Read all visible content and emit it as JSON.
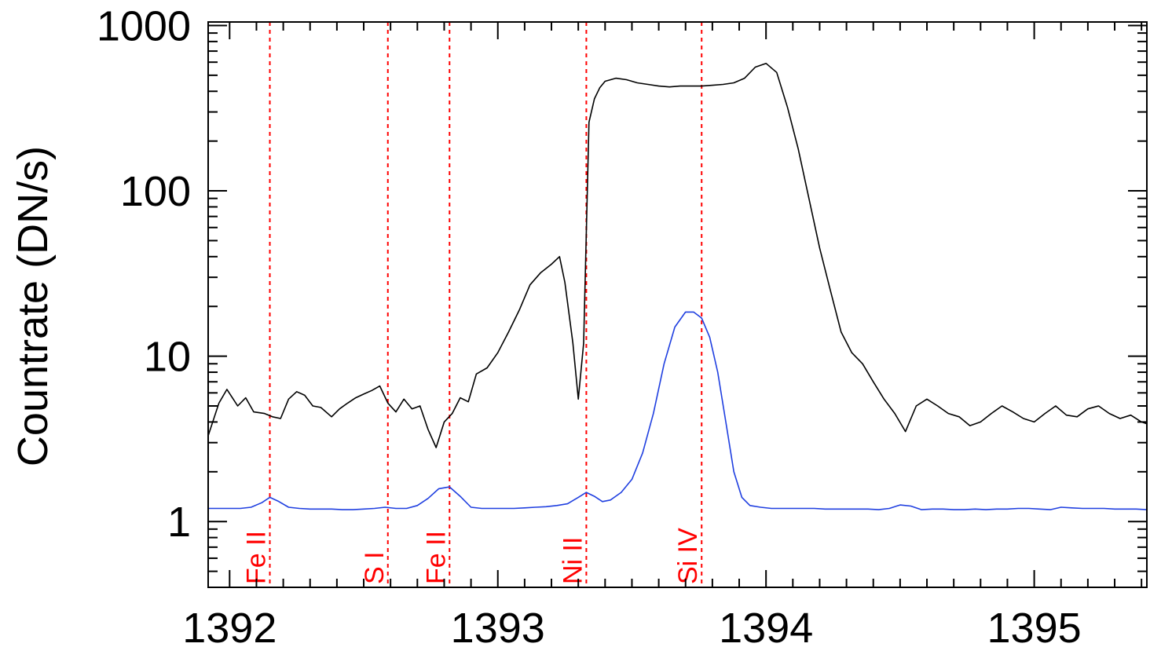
{
  "chart_data": {
    "type": "line",
    "title": "",
    "xlabel": "",
    "ylabel": "Countrate (DN/s)",
    "xlim": [
      1391.92,
      1395.42
    ],
    "ylim": [
      0.4,
      1050
    ],
    "y_scale": "log",
    "x_ticks": [
      {
        "value": 1392,
        "label": "1392"
      },
      {
        "value": 1393,
        "label": "1393"
      },
      {
        "value": 1394,
        "label": "1394"
      },
      {
        "value": 1395,
        "label": "1395"
      }
    ],
    "y_ticks": [
      {
        "value": 1,
        "label": "1"
      },
      {
        "value": 10,
        "label": "10"
      },
      {
        "value": 100,
        "label": "100"
      },
      {
        "value": 1000,
        "label": "1000"
      }
    ],
    "grid": false,
    "legend": "none",
    "colors": {
      "series_black": "#000000",
      "series_blue": "#1f3fe0",
      "marker_lines": "#ff0000"
    },
    "reference_lines": [
      {
        "x": 1392.15,
        "label": "Fe II"
      },
      {
        "x": 1392.59,
        "label": "S I"
      },
      {
        "x": 1392.82,
        "label": "Fe II"
      },
      {
        "x": 1393.33,
        "label": "Ni II"
      },
      {
        "x": 1393.76,
        "label": "Si IV"
      }
    ],
    "series": [
      {
        "color": "#000000",
        "x": [
          1391.92,
          1391.96,
          1391.99,
          1392.03,
          1392.06,
          1392.09,
          1392.13,
          1392.16,
          1392.19,
          1392.22,
          1392.25,
          1392.28,
          1392.31,
          1392.34,
          1392.38,
          1392.41,
          1392.44,
          1392.47,
          1392.5,
          1392.53,
          1392.56,
          1392.59,
          1392.62,
          1392.65,
          1392.68,
          1392.71,
          1392.74,
          1392.77,
          1392.8,
          1392.83,
          1392.86,
          1392.89,
          1392.92,
          1392.96,
          1393.0,
          1393.04,
          1393.08,
          1393.12,
          1393.16,
          1393.2,
          1393.23,
          1393.25,
          1393.28,
          1393.3,
          1393.32,
          1393.34,
          1393.36,
          1393.38,
          1393.4,
          1393.44,
          1393.48,
          1393.52,
          1393.56,
          1393.6,
          1393.64,
          1393.68,
          1393.72,
          1393.76,
          1393.8,
          1393.84,
          1393.88,
          1393.92,
          1393.96,
          1394.0,
          1394.04,
          1394.08,
          1394.12,
          1394.16,
          1394.2,
          1394.24,
          1394.28,
          1394.32,
          1394.36,
          1394.4,
          1394.44,
          1394.48,
          1394.52,
          1394.56,
          1394.6,
          1394.64,
          1394.68,
          1394.72,
          1394.76,
          1394.8,
          1394.84,
          1394.88,
          1394.92,
          1394.96,
          1395.0,
          1395.04,
          1395.08,
          1395.12,
          1395.16,
          1395.2,
          1395.24,
          1395.28,
          1395.32,
          1395.36,
          1395.4,
          1395.42
        ],
        "y": [
          3.3,
          5.2,
          6.3,
          5.0,
          5.6,
          4.6,
          4.5,
          4.3,
          4.2,
          5.5,
          6.1,
          5.8,
          5.0,
          4.9,
          4.3,
          4.8,
          5.2,
          5.6,
          5.9,
          6.2,
          6.6,
          5.2,
          4.6,
          5.5,
          4.8,
          5.0,
          3.6,
          2.8,
          4.0,
          4.5,
          5.6,
          5.3,
          7.8,
          8.5,
          10.5,
          14.0,
          19.0,
          27.0,
          32.0,
          36.0,
          40.0,
          28.0,
          12.0,
          5.5,
          12.0,
          260.0,
          360.0,
          420.0,
          460.0,
          480.0,
          470.0,
          450.0,
          440.0,
          430.0,
          425.0,
          430.0,
          430.0,
          430.0,
          435.0,
          440.0,
          450.0,
          480.0,
          560.0,
          590.0,
          520.0,
          320.0,
          180.0,
          90.0,
          45.0,
          25.0,
          14.0,
          10.5,
          9.0,
          7.0,
          5.5,
          4.5,
          3.5,
          5.0,
          5.5,
          5.0,
          4.5,
          4.3,
          3.8,
          4.0,
          4.5,
          5.0,
          4.6,
          4.2,
          4.0,
          4.5,
          5.0,
          4.4,
          4.3,
          4.8,
          5.0,
          4.5,
          4.2,
          4.4,
          4.0,
          3.9
        ]
      },
      {
        "color": "#1f3fe0",
        "x": [
          1391.92,
          1391.96,
          1392.0,
          1392.04,
          1392.08,
          1392.12,
          1392.15,
          1392.18,
          1392.22,
          1392.26,
          1392.3,
          1392.34,
          1392.38,
          1392.42,
          1392.46,
          1392.5,
          1392.54,
          1392.58,
          1392.62,
          1392.66,
          1392.7,
          1392.74,
          1392.78,
          1392.82,
          1392.86,
          1392.9,
          1392.94,
          1392.98,
          1393.02,
          1393.06,
          1393.1,
          1393.14,
          1393.18,
          1393.22,
          1393.26,
          1393.3,
          1393.33,
          1393.36,
          1393.39,
          1393.42,
          1393.46,
          1393.5,
          1393.54,
          1393.58,
          1393.62,
          1393.66,
          1393.7,
          1393.73,
          1393.76,
          1393.79,
          1393.82,
          1393.85,
          1393.88,
          1393.91,
          1393.94,
          1393.98,
          1394.02,
          1394.06,
          1394.1,
          1394.14,
          1394.18,
          1394.22,
          1394.26,
          1394.3,
          1394.34,
          1394.38,
          1394.42,
          1394.46,
          1394.5,
          1394.54,
          1394.58,
          1394.62,
          1394.66,
          1394.7,
          1394.74,
          1394.78,
          1394.82,
          1394.86,
          1394.9,
          1394.94,
          1394.98,
          1395.02,
          1395.06,
          1395.1,
          1395.14,
          1395.18,
          1395.22,
          1395.26,
          1395.3,
          1395.34,
          1395.38,
          1395.42
        ],
        "y": [
          1.2,
          1.2,
          1.2,
          1.2,
          1.22,
          1.3,
          1.4,
          1.33,
          1.22,
          1.2,
          1.19,
          1.19,
          1.19,
          1.18,
          1.18,
          1.19,
          1.2,
          1.22,
          1.2,
          1.2,
          1.25,
          1.38,
          1.58,
          1.62,
          1.42,
          1.22,
          1.2,
          1.2,
          1.2,
          1.2,
          1.21,
          1.22,
          1.23,
          1.25,
          1.28,
          1.4,
          1.5,
          1.42,
          1.32,
          1.35,
          1.5,
          1.8,
          2.6,
          4.5,
          9.0,
          15.0,
          18.5,
          18.5,
          17.0,
          13.0,
          8.0,
          4.0,
          2.0,
          1.4,
          1.25,
          1.22,
          1.2,
          1.2,
          1.2,
          1.2,
          1.2,
          1.19,
          1.19,
          1.19,
          1.19,
          1.19,
          1.18,
          1.2,
          1.26,
          1.24,
          1.18,
          1.19,
          1.19,
          1.18,
          1.18,
          1.19,
          1.18,
          1.19,
          1.19,
          1.2,
          1.2,
          1.19,
          1.18,
          1.22,
          1.21,
          1.2,
          1.2,
          1.2,
          1.19,
          1.19,
          1.19,
          1.18
        ]
      }
    ]
  }
}
